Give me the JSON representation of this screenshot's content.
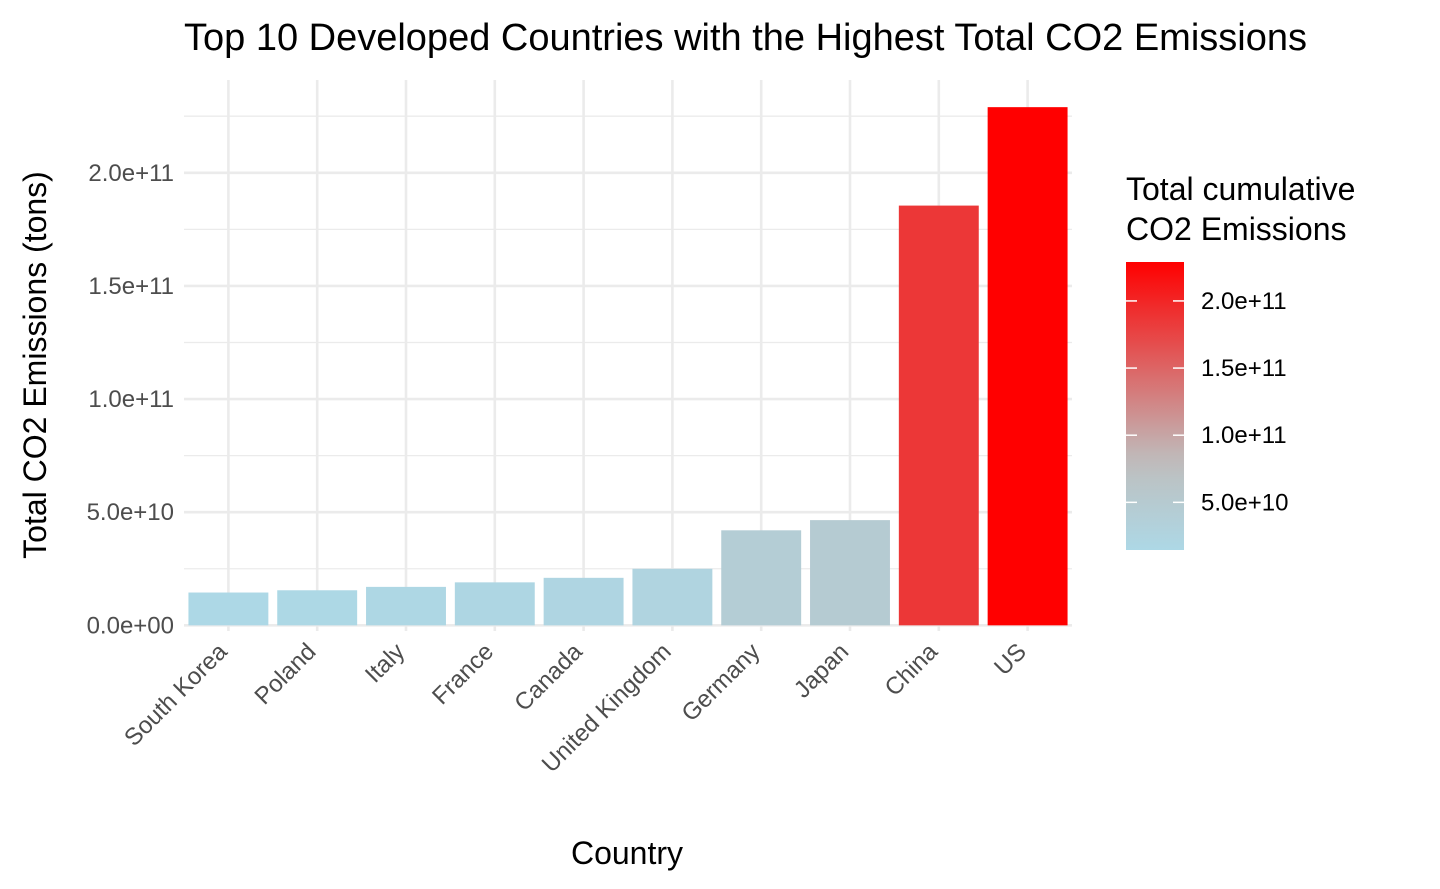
{
  "chart_data": {
    "type": "bar",
    "title": "Top 10 Developed Countries with the Highest Total CO2 Emissions",
    "xlabel": "Country",
    "ylabel": "Total CO2 Emissions (tons)",
    "categories": [
      "South Korea",
      "Poland",
      "Italy",
      "France",
      "Canada",
      "United Kingdom",
      "Germany",
      "Japan",
      "China",
      "US"
    ],
    "values": [
      14500000000,
      15500000000,
      17000000000,
      19000000000,
      21000000000,
      25000000000,
      42000000000,
      46500000000,
      185500000000,
      229000000000
    ],
    "ylim": [
      -2500000000,
      241000000000
    ],
    "y_ticks": [
      0,
      50000000000,
      100000000000,
      150000000000,
      200000000000
    ],
    "y_tick_labels": [
      "0.0e+00",
      "5.0e+10",
      "1.0e+11",
      "1.5e+11",
      "2.0e+11"
    ],
    "grid": true,
    "legend": {
      "title_lines": [
        "Total cumulative",
        "CO2 Emissions"
      ],
      "placement": "right",
      "range": [
        14500000000,
        229000000000
      ],
      "ticks": [
        50000000000,
        100000000000,
        150000000000,
        200000000000
      ],
      "tick_labels": [
        "5.0e+10",
        "1.0e+11",
        "1.5e+11",
        "2.0e+11"
      ],
      "colors": {
        "low": "#add8e6",
        "mid": "#bebebe",
        "high": "#ff0000",
        "midpoint": 80000000000
      }
    }
  }
}
